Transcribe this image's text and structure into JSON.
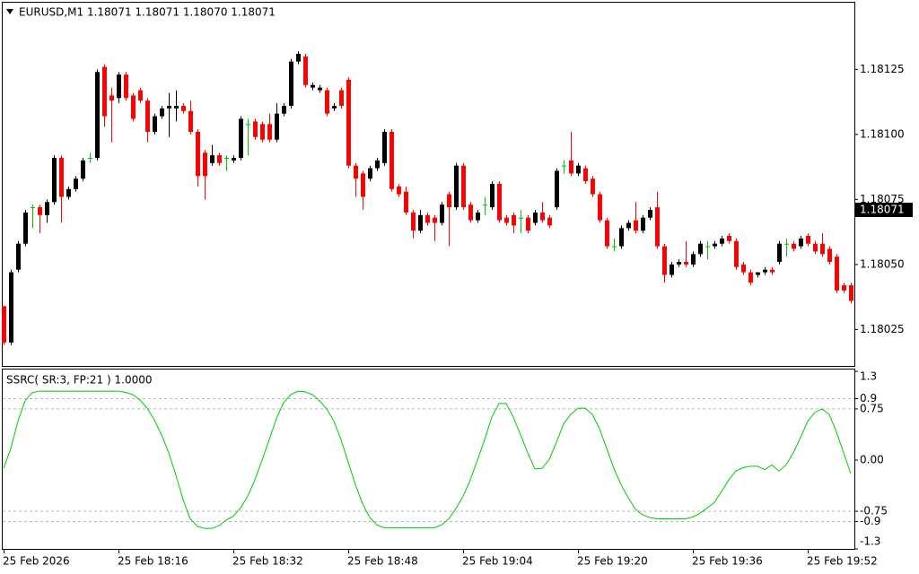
{
  "chart_data": [
    {
      "type": "candlestick",
      "title": "EURUSD,M1  1.18071 1.18071 1.18070 1.18071",
      "categories": [
        "25 Feb 2026",
        null,
        null,
        null,
        null,
        null,
        null,
        null,
        null,
        null,
        null,
        null,
        null,
        null,
        null,
        null,
        "25 Feb 18:16",
        null,
        null,
        null,
        null,
        null,
        null,
        null,
        null,
        null,
        null,
        null,
        null,
        null,
        null,
        null,
        "25 Feb 18:32",
        null,
        null,
        null,
        null,
        null,
        null,
        null,
        null,
        null,
        null,
        null,
        null,
        null,
        null,
        null,
        "25 Feb 18:48",
        null,
        null,
        null,
        null,
        null,
        null,
        null,
        null,
        null,
        null,
        null,
        null,
        null,
        null,
        null,
        "25 Feb 19:04",
        null,
        null,
        null,
        null,
        null,
        null,
        null,
        null,
        null,
        null,
        null,
        null,
        null,
        null,
        null,
        "25 Feb 19:20",
        null,
        null,
        null,
        null,
        null,
        null,
        null,
        null,
        null,
        null,
        null,
        null,
        null,
        null,
        null,
        "25 Feb 19:36",
        null,
        null,
        null,
        null,
        null,
        null,
        null,
        null,
        null,
        null,
        null,
        null,
        null,
        null,
        null,
        "25 Feb 19:52",
        null,
        null,
        null,
        null,
        null,
        null
      ],
      "open": [
        1.18034,
        1.1802,
        1.18048,
        1.18058,
        1.18072,
        1.18072,
        1.18069,
        1.18074,
        1.18091,
        1.18076,
        1.18079,
        1.18083,
        1.18091,
        1.18091,
        1.18126,
        1.18115,
        1.18114,
        1.18123,
        1.18115,
        1.18117,
        1.18113,
        1.18101,
        1.18107,
        1.1811,
        1.1811,
        1.18111,
        1.18109,
        1.18101,
        1.18093,
        1.18089,
        1.18092,
        1.18091,
        1.1809,
        1.18091,
        1.18104,
        1.18105,
        1.18104,
        1.18104,
        1.18098,
        1.18108,
        1.18111,
        1.18128,
        1.1813,
        1.18118,
        1.18117,
        1.18117,
        1.1811,
        1.18117,
        1.18121,
        1.18088,
        1.18085,
        1.18083,
        1.18087,
        1.18089,
        1.18101,
        1.1808,
        1.18078,
        1.1807,
        1.18063,
        1.18069,
        1.18068,
        1.18066,
        1.18077,
        1.18072,
        1.18088,
        1.18073,
        1.18067,
        1.18073,
        1.18072,
        1.18081,
        1.18068,
        1.18069,
        1.18068,
        1.18068,
        1.18066,
        1.1807,
        1.18068,
        1.18072,
        1.18088,
        1.1809,
        1.18085,
        1.18087,
        1.18083,
        1.18077,
        1.18067,
        1.18057,
        1.18057,
        1.18064,
        1.18067,
        1.18063,
        1.18068,
        1.18072,
        1.18057,
        1.18046,
        1.1805,
        1.18051,
        1.1805,
        1.18054,
        1.18057,
        1.18057,
        1.18058,
        1.18061,
        1.18059,
        1.1805,
        1.18047,
        1.18046,
        1.18047,
        1.18048,
        1.18051,
        1.18058,
        1.18058,
        1.18057,
        1.18061,
        1.18058,
        1.18058,
        1.18056,
        1.18053,
        1.18042,
        1.18042
      ],
      "high": [
        1.18034,
        1.18048,
        1.18059,
        1.18071,
        1.18073,
        1.18073,
        1.18075,
        1.18092,
        1.18092,
        1.1808,
        1.18084,
        1.18091,
        1.18093,
        1.18125,
        1.18127,
        1.18118,
        1.18124,
        1.18124,
        1.18116,
        1.18118,
        1.18114,
        1.18108,
        1.18111,
        1.18116,
        1.18117,
        1.18112,
        1.18113,
        1.18102,
        1.18094,
        1.18096,
        1.18093,
        1.18092,
        1.18092,
        1.18107,
        1.18106,
        1.18106,
        1.18105,
        1.18108,
        1.18112,
        1.18112,
        1.18129,
        1.18132,
        1.18131,
        1.1812,
        1.18119,
        1.18118,
        1.18112,
        1.18118,
        1.18122,
        1.18089,
        1.18086,
        1.18088,
        1.18091,
        1.18102,
        1.18102,
        1.18081,
        1.1808,
        1.18071,
        1.18071,
        1.1807,
        1.18069,
        1.18074,
        1.18078,
        1.18089,
        1.18089,
        1.18074,
        1.18071,
        1.18076,
        1.18082,
        1.18082,
        1.18069,
        1.1807,
        1.18071,
        1.18069,
        1.18071,
        1.18074,
        1.18069,
        1.18087,
        1.1809,
        1.18101,
        1.18089,
        1.18088,
        1.18084,
        1.18078,
        1.18068,
        1.1806,
        1.18065,
        1.18067,
        1.18074,
        1.18069,
        1.18072,
        1.18078,
        1.18058,
        1.18051,
        1.18052,
        1.18059,
        1.18055,
        1.18059,
        1.18059,
        1.18059,
        1.18061,
        1.18062,
        1.1806,
        1.18051,
        1.18048,
        1.18047,
        1.18049,
        1.18049,
        1.18059,
        1.1806,
        1.18059,
        1.18061,
        1.18062,
        1.18059,
        1.18062,
        1.18057,
        1.18054,
        1.18043,
        1.18043
      ],
      "low": [
        1.18019,
        1.18019,
        1.18047,
        1.18057,
        1.18064,
        1.18062,
        1.18066,
        1.18073,
        1.18066,
        1.18075,
        1.18078,
        1.18082,
        1.18089,
        1.1809,
        1.18103,
        1.18097,
        1.18112,
        1.18113,
        1.18105,
        1.18112,
        1.18097,
        1.181,
        1.18106,
        1.18099,
        1.18105,
        1.18108,
        1.181,
        1.1808,
        1.18075,
        1.18088,
        1.18088,
        1.18086,
        1.18089,
        1.1809,
        1.18092,
        1.18098,
        1.18097,
        1.18097,
        1.18097,
        1.18107,
        1.1811,
        1.18127,
        1.18118,
        1.18117,
        1.18116,
        1.18107,
        1.18109,
        1.1811,
        1.18087,
        1.18076,
        1.18071,
        1.18082,
        1.18086,
        1.18088,
        1.18078,
        1.18076,
        1.18069,
        1.1806,
        1.18062,
        1.18065,
        1.18059,
        1.18065,
        1.18057,
        1.18071,
        1.18071,
        1.18066,
        1.18066,
        1.18069,
        1.18071,
        1.18066,
        1.18065,
        1.18062,
        1.18062,
        1.18062,
        1.18065,
        1.18066,
        1.18064,
        1.18071,
        1.18085,
        1.18084,
        1.18084,
        1.18081,
        1.18076,
        1.18066,
        1.18056,
        1.18055,
        1.18056,
        1.18063,
        1.18062,
        1.18062,
        1.18067,
        1.18056,
        1.18043,
        1.18045,
        1.18049,
        1.18049,
        1.18049,
        1.18053,
        1.18052,
        1.18056,
        1.18057,
        1.18058,
        1.18048,
        1.18046,
        1.18042,
        1.18045,
        1.18046,
        1.18046,
        1.1805,
        1.18053,
        1.18055,
        1.18056,
        1.18057,
        1.18054,
        1.18053,
        1.1805,
        1.18039,
        1.18039,
        1.18035
      ],
      "close": [
        1.1802,
        1.18047,
        1.18058,
        1.1807,
        1.18072,
        1.18069,
        1.18074,
        1.18091,
        1.18076,
        1.18079,
        1.18083,
        1.1809,
        1.18091,
        1.18124,
        1.18107,
        1.18113,
        1.18123,
        1.18114,
        1.18106,
        1.18113,
        1.18101,
        1.18107,
        1.1811,
        1.18111,
        1.18111,
        1.18109,
        1.18101,
        1.18084,
        1.18084,
        1.18092,
        1.18089,
        1.18091,
        1.18091,
        1.18106,
        1.18104,
        1.18099,
        1.18098,
        1.18098,
        1.18108,
        1.18111,
        1.18128,
        1.18131,
        1.18119,
        1.18119,
        1.18118,
        1.18108,
        1.18111,
        1.18111,
        1.18088,
        1.18083,
        1.18076,
        1.18087,
        1.1809,
        1.18101,
        1.18079,
        1.18077,
        1.1807,
        1.18063,
        1.18069,
        1.18066,
        1.18066,
        1.18073,
        1.18072,
        1.18088,
        1.18072,
        1.18067,
        1.1807,
        1.18073,
        1.18081,
        1.18067,
        1.18066,
        1.18065,
        1.18068,
        1.18063,
        1.1807,
        1.18067,
        1.18065,
        1.18086,
        1.18088,
        1.18085,
        1.18088,
        1.18082,
        1.18077,
        1.18067,
        1.18057,
        1.18057,
        1.18064,
        1.18066,
        1.18063,
        1.18068,
        1.18071,
        1.18057,
        1.18046,
        1.1805,
        1.18051,
        1.1805,
        1.18054,
        1.18058,
        1.18057,
        1.18058,
        1.1806,
        1.18059,
        1.18049,
        1.18047,
        1.18043,
        1.18047,
        1.18048,
        1.18047,
        1.18058,
        1.18058,
        1.18056,
        1.1806,
        1.18058,
        1.18055,
        1.18054,
        1.18051,
        1.1804,
        1.1804,
        1.18036
      ],
      "up_color": "#000000",
      "down_color": "#ff0000",
      "doji_color": "#00c000",
      "ylim": [
        1.18011,
        1.18151
      ],
      "yticks": [
        1.18125,
        {
          "value": 1.181,
          "label": "1.18100"
        },
        {
          "value": 1.18075,
          "label": "1.18075"
        },
        {
          "value": 1.1805,
          "label": "1.18050"
        },
        1.18025
      ],
      "last_price": 1.18071
    },
    {
      "type": "line",
      "title": "SSRC( SR:3, FP:21 ) 1.0000",
      "color": "#00cc00",
      "values": [
        -0.12,
        0.17,
        0.57,
        0.87,
        0.99,
        1.01,
        1.01,
        1.01,
        1.01,
        1.01,
        1.01,
        1.01,
        1.01,
        1.01,
        1.01,
        1.01,
        1.01,
        0.99,
        0.96,
        0.88,
        0.76,
        0.59,
        0.37,
        0.11,
        -0.22,
        -0.58,
        -0.86,
        -0.97,
        -1.0,
        -1.0,
        -0.96,
        -0.88,
        -0.82,
        -0.7,
        -0.53,
        -0.29,
        0,
        0.3,
        0.61,
        0.84,
        0.96,
        1.01,
        1.0,
        0.96,
        0.87,
        0.75,
        0.57,
        0.3,
        -0.03,
        -0.36,
        -0.64,
        -0.84,
        -0.95,
        -0.99,
        -0.99,
        -0.99,
        -0.99,
        -0.99,
        -0.99,
        -0.99,
        -0.99,
        -0.95,
        -0.86,
        -0.71,
        -0.53,
        -0.29,
        0,
        0.3,
        0.63,
        0.83,
        0.83,
        0.63,
        0.37,
        0.11,
        -0.13,
        -0.12,
        0.01,
        0.26,
        0.53,
        0.67,
        0.76,
        0.76,
        0.67,
        0.46,
        0.17,
        -0.12,
        -0.36,
        -0.55,
        -0.72,
        -0.8,
        -0.84,
        -0.86,
        -0.86,
        -0.86,
        -0.86,
        -0.86,
        -0.83,
        -0.78,
        -0.7,
        -0.62,
        -0.46,
        -0.29,
        -0.16,
        -0.11,
        -0.09,
        -0.09,
        -0.14,
        -0.07,
        -0.16,
        -0.07,
        0.11,
        0.33,
        0.57,
        0.7,
        0.75,
        0.67,
        0.41,
        0.11,
        -0.2
      ],
      "ylim": [
        -1.3,
        1.34
      ],
      "yticks": [
        1.3,
        0.9,
        0.75,
        {
          "value": 0,
          "label": "0.00"
        },
        -0.75,
        -0.9,
        -1.3
      ],
      "levels": [
        0.9,
        0.75,
        -0.75,
        -0.9
      ]
    }
  ]
}
